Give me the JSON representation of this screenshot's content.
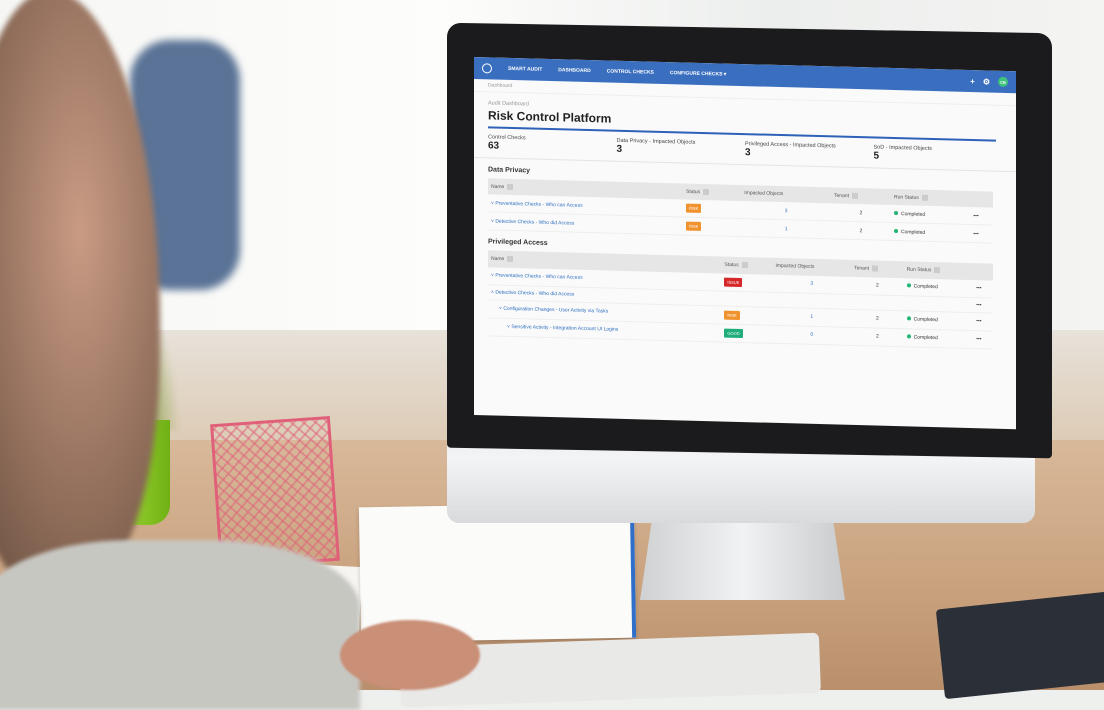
{
  "nav": {
    "brand": "SMART AUDIT",
    "items": [
      "DASHBOARD",
      "CONTROL CHECKS",
      "CONFIGURE CHECKS ▾"
    ],
    "icons": [
      "plus-icon",
      "gear-icon"
    ],
    "avatar": "CB"
  },
  "breadcrumb": "Dashboard",
  "subtitle": "Audit Dashboard",
  "title": "Risk Control Platform",
  "kpis": [
    {
      "label": "Control Checks",
      "value": "63"
    },
    {
      "label": "Data Privacy - Impacted Objects",
      "value": "3"
    },
    {
      "label": "Privileged Access - Impacted Objects",
      "value": "3"
    },
    {
      "label": "SoD - Impacted Objects",
      "value": "5"
    }
  ],
  "columns": [
    "Name",
    "Status",
    "Impacted Objects",
    "Tenant",
    "Run Status"
  ],
  "sections": [
    {
      "title": "Data Privacy",
      "rows": [
        {
          "name": "Preventative Checks - Who can Access",
          "status": "RISK",
          "status_color": "#f0922e",
          "impacted": "3",
          "tenant": "2",
          "run": "Completed",
          "indent": 0
        },
        {
          "name": "Detective Checks - Who did Access",
          "status": "RISK",
          "status_color": "#f0922e",
          "impacted": "1",
          "tenant": "2",
          "run": "Completed",
          "indent": 0
        }
      ]
    },
    {
      "title": "Privileged Access",
      "rows": [
        {
          "name": "Preventative Checks - Who can Access",
          "status": "ISSUE",
          "status_color": "#d62828",
          "impacted": "3",
          "tenant": "2",
          "run": "Completed",
          "indent": 0
        },
        {
          "name": "Detective Checks - Who did Access",
          "status": "",
          "status_color": "",
          "impacted": "",
          "tenant": "",
          "run": "",
          "indent": 0
        },
        {
          "name": "Configuration Changes - User Activity via Tasks",
          "status": "RISK",
          "status_color": "#f0922e",
          "impacted": "1",
          "tenant": "2",
          "run": "Completed",
          "indent": 1
        },
        {
          "name": "Sensitive Activity - Integration Account UI Logins",
          "status": "GOOD",
          "status_color": "#1fae7a",
          "impacted": "0",
          "tenant": "2",
          "run": "Completed",
          "indent": 2
        }
      ]
    }
  ],
  "more": "•••",
  "colors": {
    "nav": "#3a6fc0",
    "accent": "#2d62b8",
    "completed": "#22b573"
  }
}
